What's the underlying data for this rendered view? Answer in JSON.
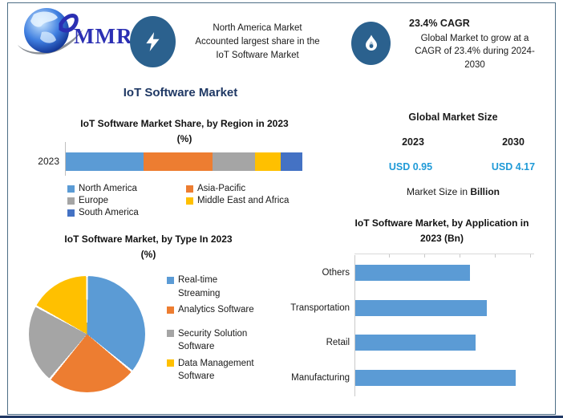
{
  "brand": {
    "logo_text": "MMR"
  },
  "header": {
    "north_america_note": {
      "icon": "lightning-icon",
      "lines": [
        "North America Market",
        "Accounted largest share in the",
        "IoT Software Market"
      ]
    },
    "cagr": {
      "icon": "flame-icon",
      "title": "23.4% CAGR",
      "lines": [
        "Global Market to grow at a",
        "CAGR of 23.4% during 2024-",
        "2030"
      ]
    }
  },
  "main_title": "IoT Software Market",
  "market_size": {
    "title": "Global Market Size",
    "columns": [
      {
        "year": "2023",
        "value": "USD 0.95"
      },
      {
        "year": "2030",
        "value": "USD 4.17"
      }
    ],
    "note_prefix": "Market Size in ",
    "note_bold": "Billion",
    "value_color": "#1F9AD7"
  },
  "colors": {
    "office_blue": "#5B9BD5",
    "office_orange": "#ED7D31",
    "office_gray": "#A5A5A5",
    "office_yellow": "#FFC000",
    "office_dark_blue": "#4472C4",
    "title_navy": "#1F3864",
    "icon_circle": "#2B618E",
    "frame_border": "#4d6e86",
    "usd_blue": "#1F9AD7"
  },
  "chart_data": [
    {
      "type": "bar",
      "variant": "stacked-horizontal",
      "title": "IoT Software Market Share, by Region in 2023 (%)",
      "title_lines": [
        "IoT Software Market Share, by Region in 2023",
        "(%)"
      ],
      "categories": [
        "2023"
      ],
      "series": [
        {
          "name": "North America",
          "color": "#5B9BD5",
          "values": [
            33
          ]
        },
        {
          "name": "Asia-Pacific",
          "color": "#ED7D31",
          "values": [
            29
          ]
        },
        {
          "name": "Europe",
          "color": "#A5A5A5",
          "values": [
            18
          ]
        },
        {
          "name": "Middle East and Africa",
          "color": "#FFC000",
          "values": [
            11
          ]
        },
        {
          "name": "South America",
          "color": "#4472C4",
          "values": [
            9
          ]
        }
      ],
      "unit": "%",
      "legend_position": "bottom"
    },
    {
      "type": "pie",
      "title": "IoT Software Market, by Type In 2023 (%)",
      "title_lines": [
        "IoT Software Market, by Type In 2023",
        "(%)"
      ],
      "slices": [
        {
          "label": "Real-time Streaming",
          "display_lines": [
            "Real-time",
            "Streaming"
          ],
          "value": 36,
          "color": "#5B9BD5"
        },
        {
          "label": "Analytics Software",
          "display_lines": [
            "Analytics Software"
          ],
          "value": 25,
          "color": "#ED7D31"
        },
        {
          "label": "Security Solution Software",
          "display_lines": [
            "Security Solution",
            "Software"
          ],
          "value": 22,
          "color": "#A5A5A5"
        },
        {
          "label": "Data Management Software",
          "display_lines": [
            "Data Management",
            "Software"
          ],
          "value": 17,
          "color": "#FFC000"
        }
      ],
      "start_angle_deg": 0,
      "unit": "%",
      "legend_position": "right"
    },
    {
      "type": "bar",
      "variant": "horizontal",
      "title": "IoT Software Market, by Application in 2023 (Bn)",
      "title_lines": [
        "IoT Software Market, by Application in",
        "2023 (Bn)"
      ],
      "categories": [
        "Others",
        "Transportation",
        "Retail",
        "Manufacturing"
      ],
      "values": [
        0.2,
        0.23,
        0.21,
        0.28
      ],
      "color": "#5B9BD5",
      "unit": "Bn",
      "axis": "category-left",
      "grid": "top-ticks"
    }
  ]
}
